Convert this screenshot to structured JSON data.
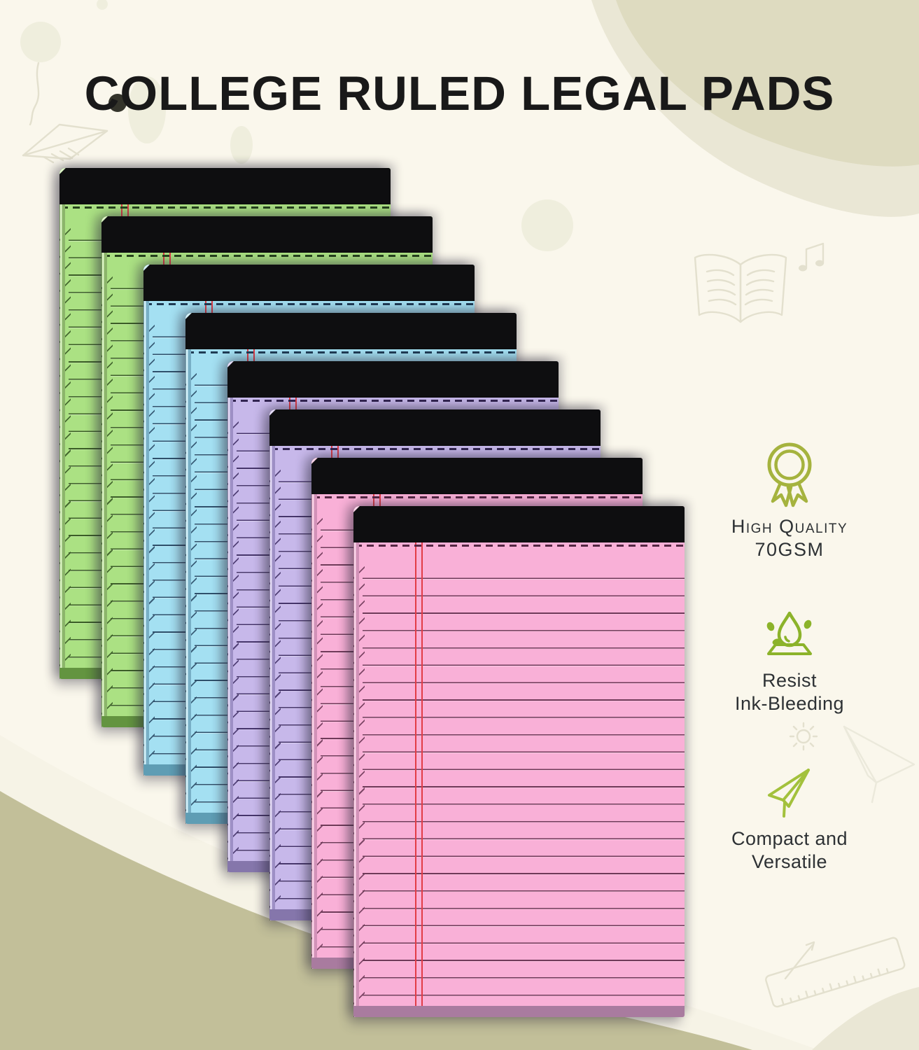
{
  "title": "COLLEGE RULED LEGAL PADS",
  "features": [
    {
      "icon": "award-medal-icon",
      "line1": "High Quality",
      "line2": "70GSM",
      "icon_color": "#a5b33e"
    },
    {
      "icon": "ink-drop-icon",
      "line1": "Resist",
      "line2": "Ink-Bleeding",
      "icon_color": "#8cb32a"
    },
    {
      "icon": "paper-plane-icon",
      "line1": "Compact and",
      "line2": "Versatile",
      "icon_color": "#a3c13c"
    }
  ],
  "pads": {
    "order": [
      "green",
      "green",
      "blue",
      "blue",
      "purple",
      "purple",
      "pink",
      "pink"
    ],
    "binding_color": "#0e0e10",
    "colors": {
      "green": {
        "paper": "#abe183",
        "rule": "#3b5d27",
        "dash": "#26421c",
        "edge_light": "#ddf5c6",
        "edge_mid": "#8cb56b",
        "base": "#639440",
        "margin": "#e23c46"
      },
      "blue": {
        "paper": "#a4e0f2",
        "rule": "#2e506b",
        "dash": "#1f3c55",
        "edge_light": "#d6f3fb",
        "edge_mid": "#78afc6",
        "base": "#5f9db4",
        "margin": "#e23c46"
      },
      "purple": {
        "paper": "#c7b8ea",
        "rule": "#46356b",
        "dash": "#332552",
        "edge_light": "#e5dcf7",
        "edge_mid": "#9d8fc5",
        "base": "#8576ab",
        "margin": "#e23c46"
      },
      "pink": {
        "paper": "#f9b0d7",
        "rule": "#703a59",
        "dash": "#552744",
        "edge_light": "#fdd6ea",
        "edge_mid": "#d292b8",
        "base": "#a97b9f",
        "margin": "#e23c46"
      }
    }
  },
  "background": {
    "cream": "#faf7ec",
    "olive_wave": "#dedbc0",
    "olive_band": "#eae7d5",
    "sage_wave": "#c2bf99",
    "white_band": "#f6f3e6",
    "doodle_stroke": "#e3e0ce",
    "blob_fill": "#efeedd",
    "dark_dot": "#23231a",
    "title_color": "#191919",
    "text_color": "#2d3134"
  }
}
